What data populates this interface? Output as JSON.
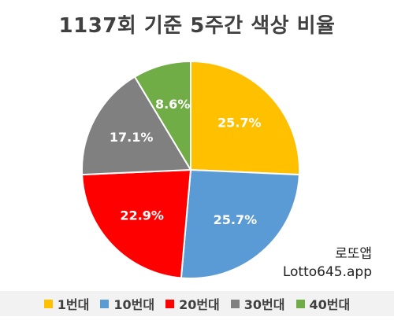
{
  "title": "1137회 기준 5주간 색상 비율",
  "watermark": {
    "line1": "로또앱",
    "line2": "Lotto645.app"
  },
  "chart_data": {
    "type": "pie",
    "title": "1137회 기준 5주간 색상 비율",
    "categories": [
      "1번대",
      "10번대",
      "20번대",
      "30번대",
      "40번대"
    ],
    "values": [
      25.7,
      25.7,
      22.9,
      17.1,
      8.6
    ],
    "labels": [
      "25.7%",
      "25.7%",
      "22.9%",
      "17.1%",
      "8.6%"
    ],
    "colors": [
      "#FFC000",
      "#5B9BD5",
      "#FF0000",
      "#808080",
      "#70AD47"
    ],
    "start": "12 o'clock",
    "direction": "clockwise",
    "legend_position": "bottom"
  }
}
